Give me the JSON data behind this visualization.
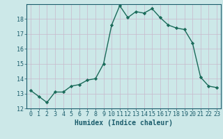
{
  "x": [
    0,
    1,
    2,
    3,
    4,
    5,
    6,
    7,
    8,
    9,
    10,
    11,
    12,
    13,
    14,
    15,
    16,
    17,
    18,
    19,
    20,
    21,
    22,
    23
  ],
  "y": [
    13.2,
    12.8,
    12.4,
    13.1,
    13.1,
    13.5,
    13.6,
    13.9,
    14.0,
    15.0,
    17.6,
    18.9,
    18.1,
    18.5,
    18.4,
    18.7,
    18.1,
    17.6,
    17.4,
    17.3,
    16.4,
    14.1,
    13.5,
    13.4
  ],
  "line_color": "#1a6b5a",
  "marker": "D",
  "marker_size": 2.2,
  "bg_color": "#cce8e8",
  "grid_color": "#c8b8cc",
  "xlabel": "Humidex (Indice chaleur)",
  "ylim": [
    12,
    19
  ],
  "xlim": [
    -0.5,
    23.5
  ],
  "yticks": [
    12,
    13,
    14,
    15,
    16,
    17,
    18
  ],
  "xticks": [
    0,
    1,
    2,
    3,
    4,
    5,
    6,
    7,
    8,
    9,
    10,
    11,
    12,
    13,
    14,
    15,
    16,
    17,
    18,
    19,
    20,
    21,
    22,
    23
  ],
  "font_color": "#1a5c6b",
  "xlabel_fontsize": 7.0,
  "tick_fontsize": 6.0,
  "linewidth": 1.0
}
